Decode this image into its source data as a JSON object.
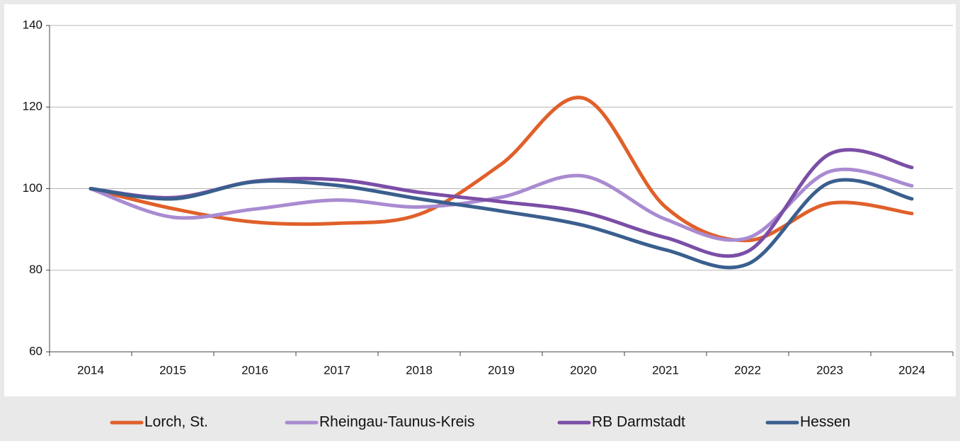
{
  "chart_data": {
    "type": "line",
    "categories": [
      "2014",
      "2015",
      "2016",
      "2017",
      "2018",
      "2019",
      "2020",
      "2021",
      "2022",
      "2023",
      "2024"
    ],
    "series": [
      {
        "name": "Lorch, St.",
        "color": "#e0602a",
        "values": [
          100,
          95.1,
          91.8,
          91.5,
          93.7,
          106,
          122.2,
          95.5,
          87.3,
          96.4,
          93.9
        ]
      },
      {
        "name": "Rheingau-Taunus-Kreis",
        "color": "#a98bd1",
        "values": [
          100,
          93,
          95,
          97.2,
          95.5,
          97.9,
          103.1,
          92.5,
          87.9,
          104.2,
          100.7
        ]
      },
      {
        "name": "RB Darmstadt",
        "color": "#7b4ea6",
        "values": [
          100,
          97.8,
          101.8,
          102.2,
          99.1,
          96.8,
          94.2,
          88,
          84.6,
          108.5,
          105.2
        ]
      },
      {
        "name": "Hessen",
        "color": "#3a5f8e",
        "values": [
          100,
          97.5,
          101.7,
          100.8,
          97.5,
          94.5,
          91,
          85,
          81.5,
          101.5,
          97.5
        ]
      }
    ],
    "ylim": [
      60,
      140
    ],
    "yticks": [
      60,
      80,
      100,
      120,
      140
    ],
    "grid": true
  }
}
